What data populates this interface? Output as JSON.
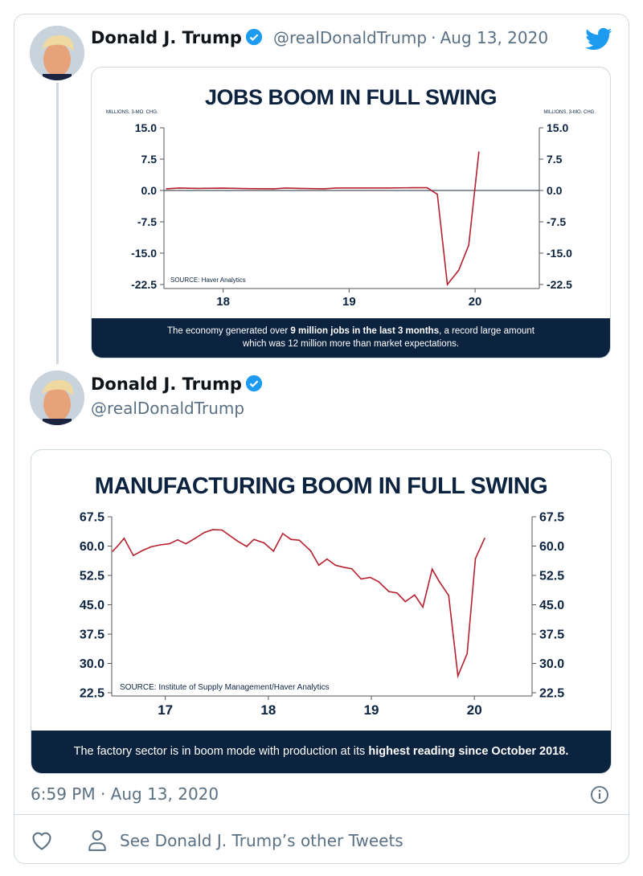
{
  "tweet1": {
    "name": "Donald J. Trump",
    "handle": "@realDonaldTrump",
    "separator": "·",
    "date": "Aug 13, 2020"
  },
  "tweet2": {
    "name": "Donald J. Trump",
    "handle": "@realDonaldTrump"
  },
  "timestamp": "6:59 PM · Aug 13, 2020",
  "actions": {
    "see_other": "See Donald J. Trump’s other Tweets"
  },
  "colors": {
    "navy": "#0c2340",
    "line": "#b5202e",
    "twitter_blue": "#1d9bf0"
  },
  "icons": [
    "twitter-bird-icon",
    "verified-badge-icon",
    "info-icon",
    "heart-icon",
    "person-icon"
  ],
  "card1": {
    "footer_pre": "The economy generated over ",
    "footer_bold": "9 million jobs in the last 3 months",
    "footer_post": ", a record large amount which was 12 million more than market expectations."
  },
  "card2": {
    "footer_pre": "The factory sector is in boom mode with production at its ",
    "footer_bold": "highest reading since October 2018."
  },
  "chart_data": [
    {
      "type": "line",
      "title": "JOBS BOOM IN FULL SWING",
      "ylabel": "MILLIONS, 3-MO. CHG.",
      "ylabel_right": "MILLIONS, 3-MO. CHG.",
      "source": "SOURCE: Haver Analytics",
      "xlim": [
        17.53,
        20.51
      ],
      "ylim": [
        -22.5,
        15.0
      ],
      "xticks": [
        "18",
        "19",
        "20"
      ],
      "yticks": [
        "15.0",
        "7.5",
        "0.0",
        "-7.5",
        "-15.0",
        "-22.5"
      ],
      "zero_line": true,
      "grid": false,
      "x": [
        17.55,
        17.65,
        17.8,
        18.0,
        18.2,
        18.4,
        18.5,
        18.6,
        18.8,
        18.9,
        19.1,
        19.3,
        19.5,
        19.62,
        19.7,
        19.78,
        19.87,
        19.95,
        20.03
      ],
      "y": [
        0.4,
        0.6,
        0.5,
        0.55,
        0.45,
        0.4,
        0.6,
        0.5,
        0.4,
        0.6,
        0.6,
        0.6,
        0.65,
        0.65,
        -0.9,
        -22.5,
        -19.1,
        -13.1,
        9.2
      ]
    },
    {
      "type": "line",
      "title": "MANUFACTURING BOOM IN FULL SWING",
      "source": "SOURCE: Institute of Supply Management/Haver Analytics",
      "xlim": [
        16.48,
        20.56
      ],
      "ylim": [
        22.5,
        67.5
      ],
      "xticks": [
        "17",
        "18",
        "19",
        "20"
      ],
      "yticks": [
        "67.5",
        "60.0",
        "52.5",
        "45.0",
        "37.5",
        "30.0",
        "22.5"
      ],
      "grid": false,
      "x": [
        16.49,
        16.54,
        16.6,
        16.69,
        16.78,
        16.86,
        16.95,
        17.04,
        17.12,
        17.2,
        17.29,
        17.38,
        17.46,
        17.55,
        17.62,
        17.7,
        17.79,
        17.86,
        17.96,
        18.05,
        18.14,
        18.22,
        18.3,
        18.41,
        18.49,
        18.57,
        18.65,
        18.73,
        18.81,
        18.9,
        18.99,
        19.07,
        19.17,
        19.25,
        19.33,
        19.42,
        19.5,
        19.59,
        19.66,
        19.75,
        19.84,
        19.93,
        20.01,
        20.1
      ],
      "y": [
        58.7,
        60.1,
        62.0,
        57.6,
        58.9,
        59.8,
        60.3,
        60.6,
        61.6,
        60.6,
        62.0,
        63.5,
        64.2,
        64.1,
        62.8,
        61.3,
        59.9,
        61.7,
        60.8,
        58.7,
        63.2,
        61.7,
        61.5,
        58.8,
        55.1,
        56.7,
        55.1,
        54.6,
        54.2,
        51.6,
        52.0,
        50.9,
        48.4,
        48.0,
        45.8,
        47.5,
        44.4,
        54.1,
        50.9,
        47.4,
        26.8,
        32.5,
        56.8,
        62.0
      ]
    }
  ]
}
